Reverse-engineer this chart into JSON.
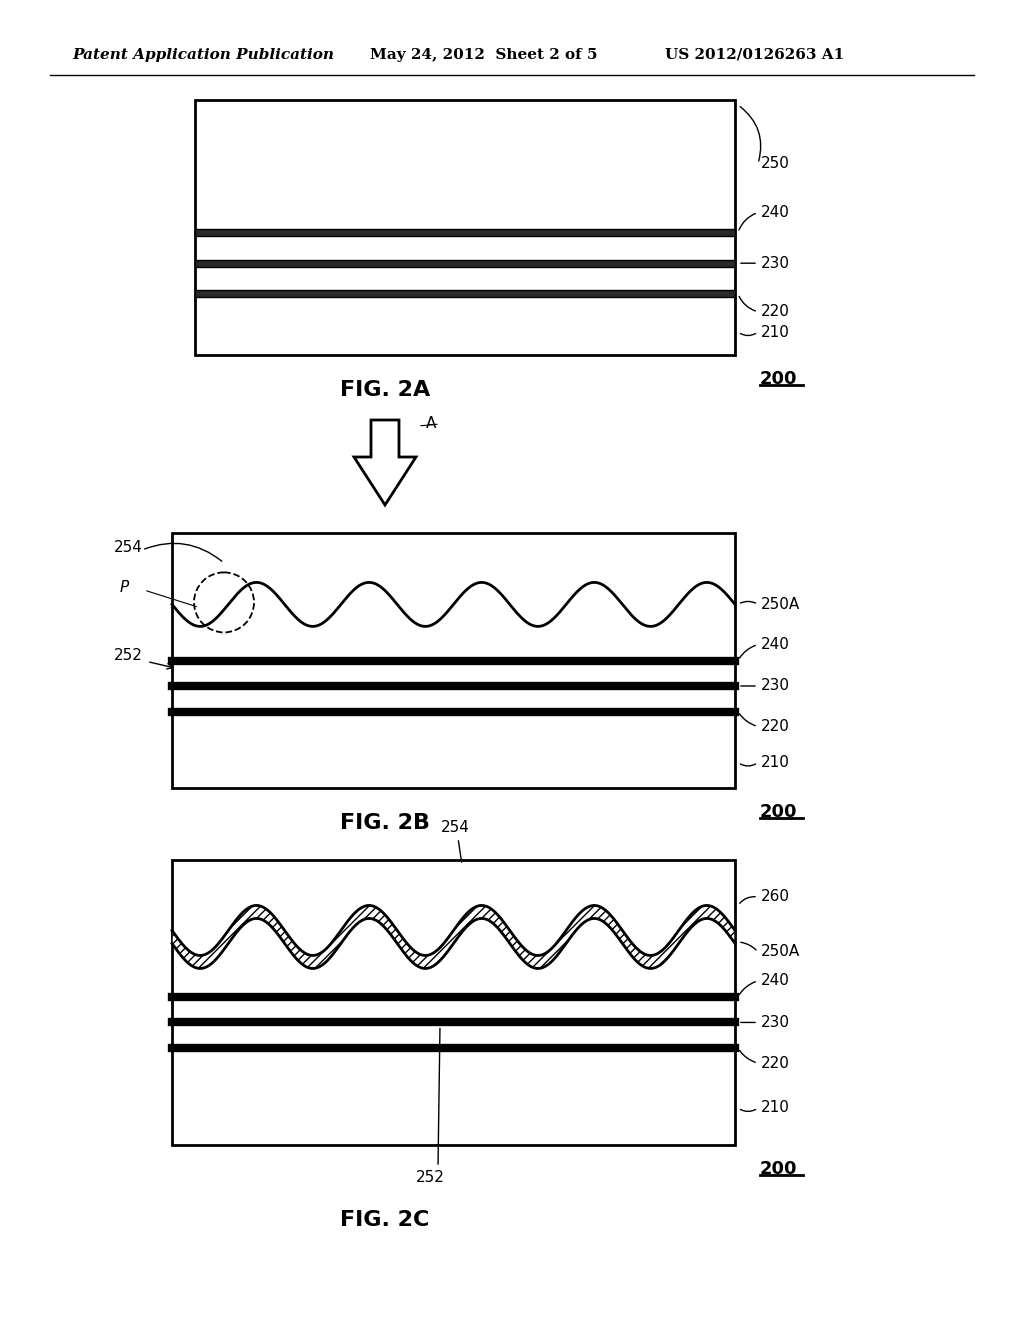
{
  "bg_color": "#ffffff",
  "header_left": "Patent Application Publication",
  "header_mid": "May 24, 2012  Sheet 2 of 5",
  "header_right": "US 2012/0126263 A1"
}
